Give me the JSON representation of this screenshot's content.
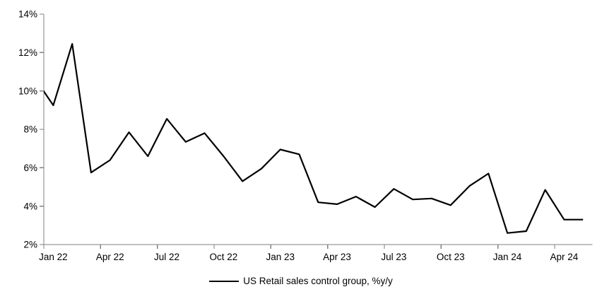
{
  "chart_data": {
    "type": "line",
    "title": "",
    "xlabel": "",
    "ylabel": "",
    "grid": false,
    "legend_position": "bottom-center",
    "axis_color": "#828282",
    "ylim": [
      2,
      14
    ],
    "y_tick_values": [
      2,
      4,
      6,
      8,
      10,
      12,
      14
    ],
    "y_tick_labels": [
      "2%",
      "4%",
      "6%",
      "8%",
      "10%",
      "12%",
      "14%"
    ],
    "x_tick_labels": [
      "Jan 22",
      "Apr 22",
      "Jul 22",
      "Oct 22",
      "Jan 23",
      "Apr 23",
      "Jul 23",
      "Oct 23",
      "Jan 24",
      "Apr 24"
    ],
    "x": [
      "Dec 21",
      "Jan 22",
      "Feb 22",
      "Mar 22",
      "Apr 22",
      "May 22",
      "Jun 22",
      "Jul 22",
      "Aug 22",
      "Sep 22",
      "Oct 22",
      "Nov 22",
      "Dec 22",
      "Jan 23",
      "Feb 23",
      "Mar 23",
      "Apr 23",
      "May 23",
      "Jun 23",
      "Jul 23",
      "Aug 23",
      "Sep 23",
      "Oct 23",
      "Nov 23",
      "Dec 23",
      "Jan 24",
      "Feb 24",
      "Mar 24",
      "Apr 24",
      "May 24"
    ],
    "series": [
      {
        "name": "US Retail sales control group, %y/y",
        "color": "#000000",
        "values": [
          10.7,
          9.25,
          12.45,
          5.75,
          6.4,
          7.85,
          6.6,
          8.55,
          7.35,
          7.8,
          6.6,
          5.3,
          5.95,
          6.95,
          6.7,
          4.2,
          4.1,
          4.5,
          3.95,
          4.9,
          4.35,
          4.4,
          4.05,
          5.05,
          5.7,
          2.6,
          2.7,
          4.85,
          3.3,
          3.3
        ]
      }
    ],
    "display_note": "Plot x-range starts at Jan 22; the Dec 21 point sits left of the plot edge so its segment is clipped at the y-axis"
  }
}
